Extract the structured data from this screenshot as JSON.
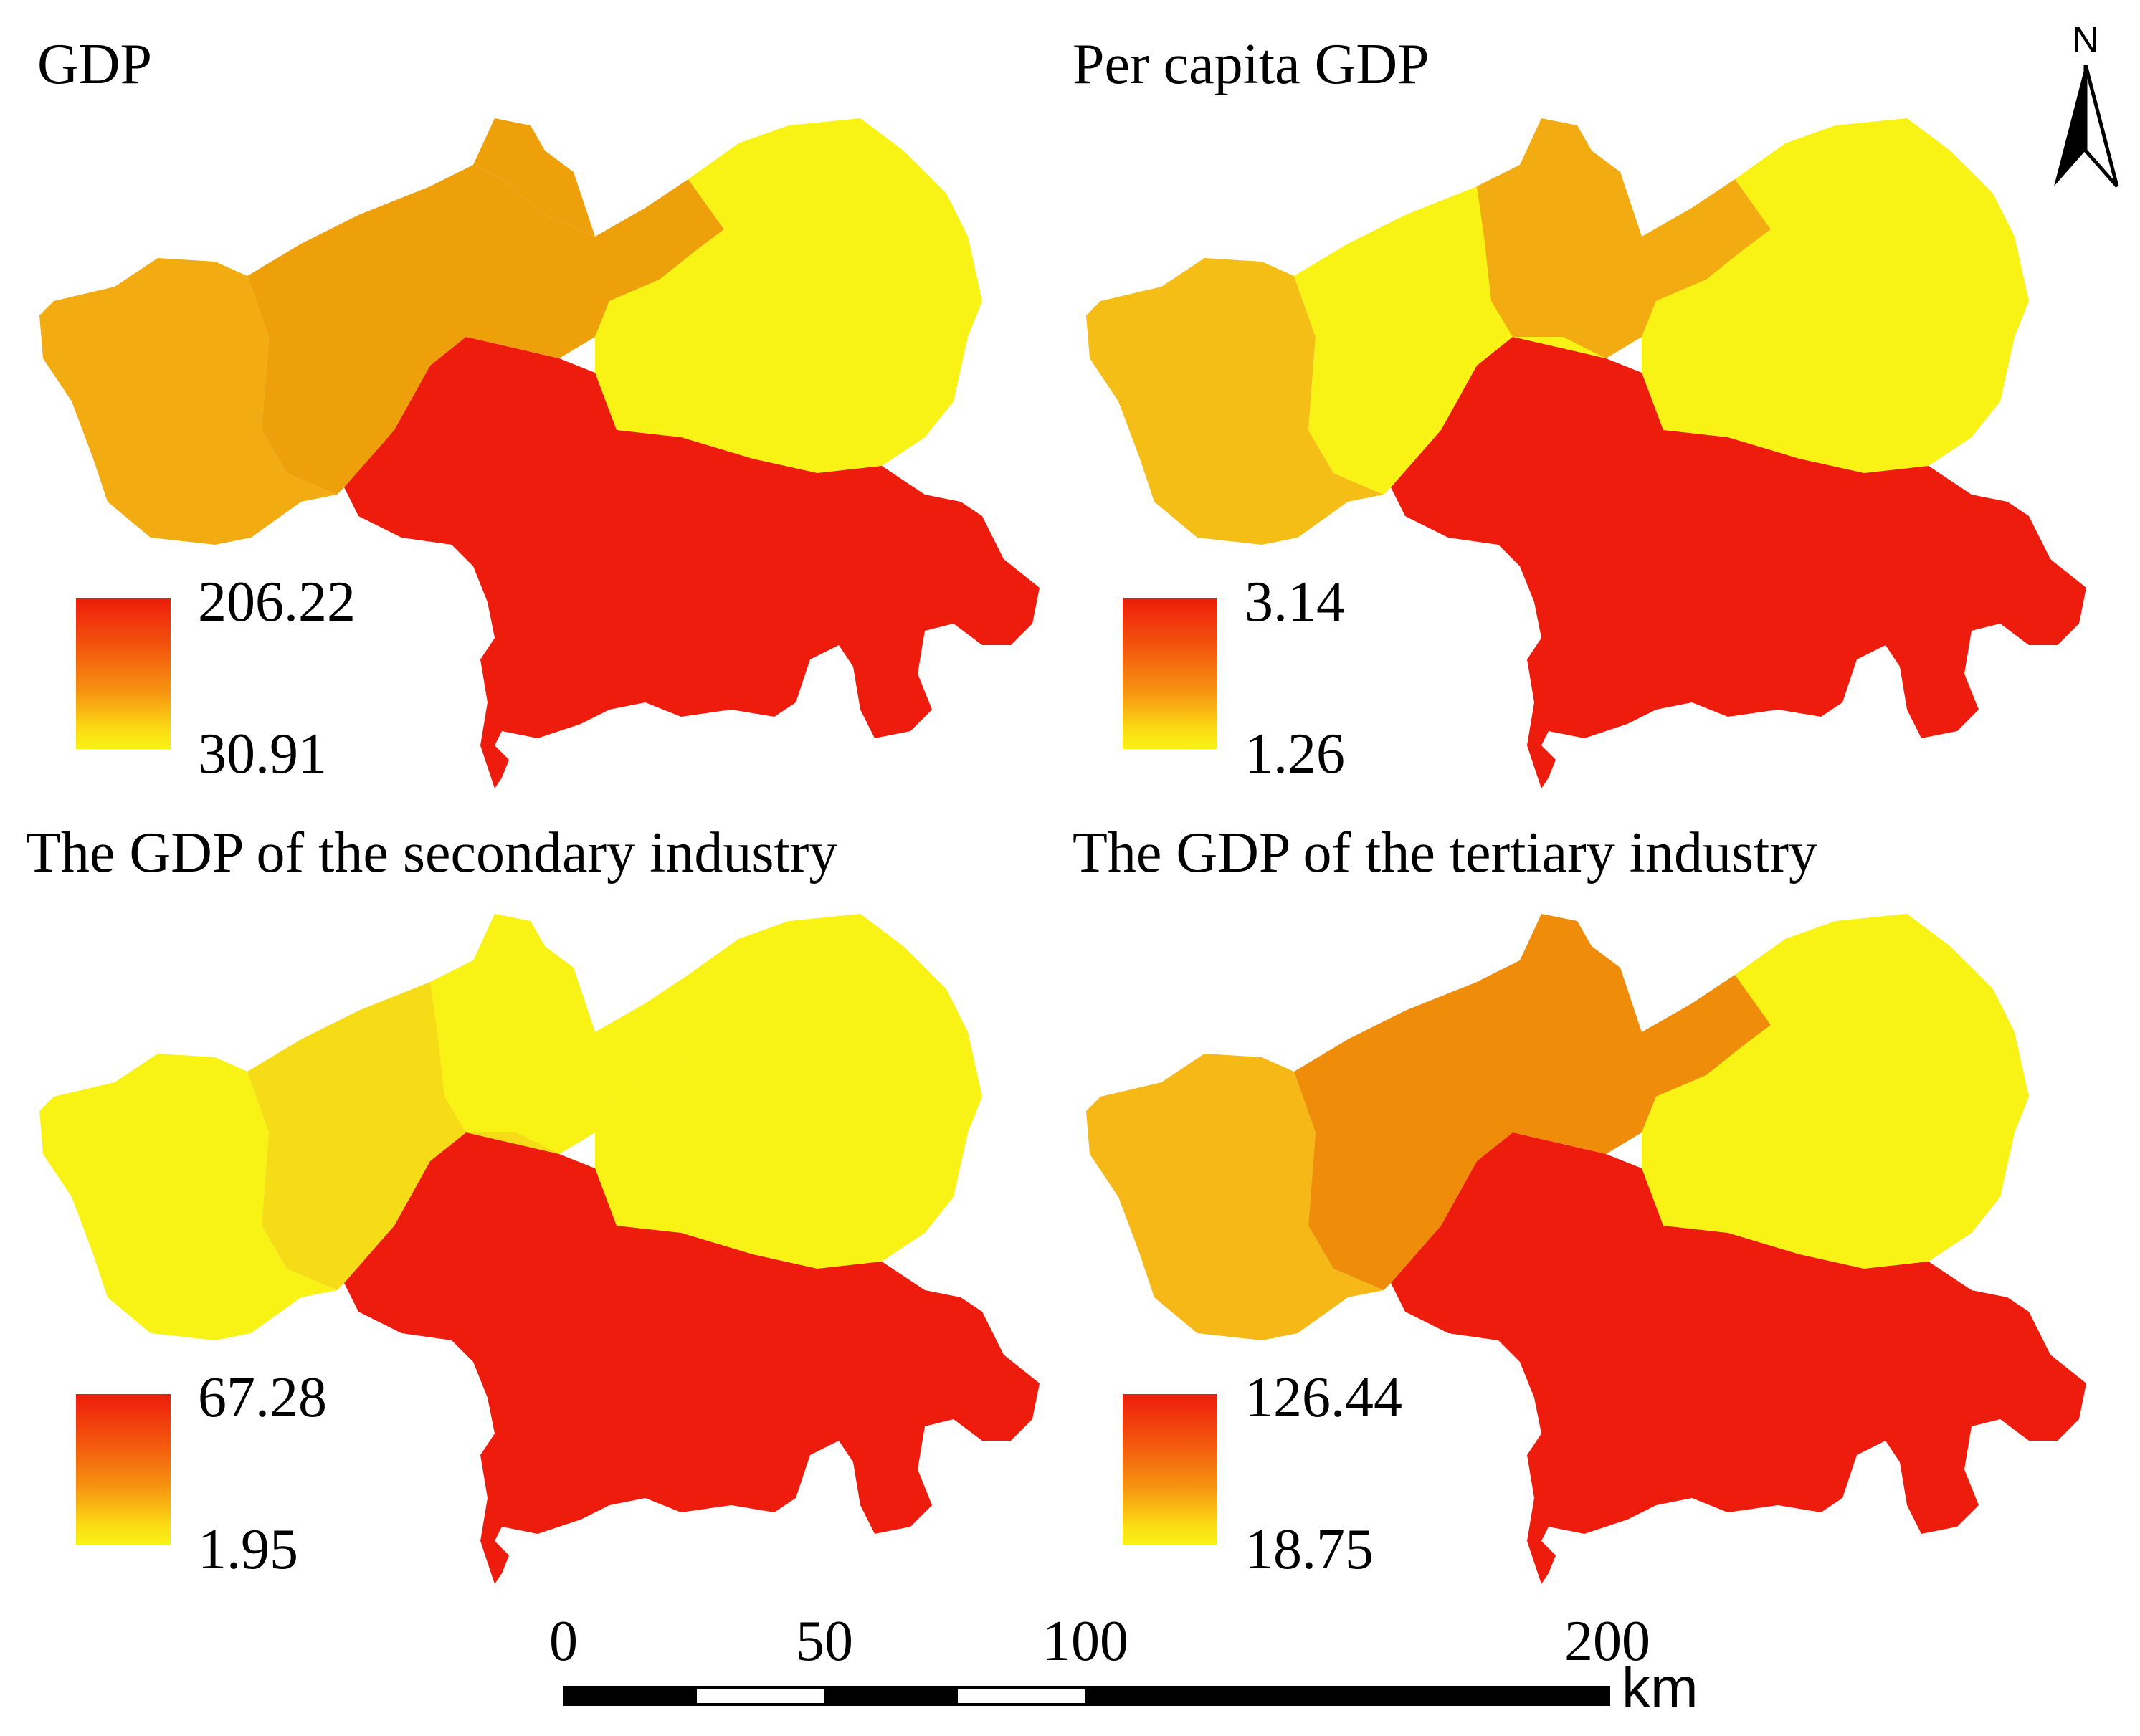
{
  "colors": {
    "low": "#f8f215",
    "mid_low": "#f5be16",
    "mid": "#f2a20e",
    "mid_high": "#ef8c0a",
    "high": "#ee1c0c"
  },
  "panels": [
    {
      "title": "GDP",
      "legend": {
        "max": "206.22",
        "min": "30.91"
      },
      "districts": {
        "west": "#f2ac12",
        "central": "#eea00b",
        "north": "#eea00b",
        "east": "#f8f215",
        "south": "#ee1c0c"
      }
    },
    {
      "title": "Per capita GDP",
      "legend": {
        "max": "3.14",
        "min": "1.26"
      },
      "districts": {
        "west": "#f5be16",
        "central": "#f8f215",
        "north": "#f2ac12",
        "east": "#f8f215",
        "south": "#ee1c0c"
      }
    },
    {
      "title": "The GDP of the secondary industry",
      "legend": {
        "max": "67.28",
        "min": "1.95"
      },
      "districts": {
        "west": "#f8f215",
        "central": "#f5dc16",
        "north": "#f8f215",
        "east": "#f8f215",
        "south": "#ee1c0c"
      }
    },
    {
      "title": "The GDP of the tertiary industry",
      "legend": {
        "max": "126.44",
        "min": "18.75"
      },
      "districts": {
        "west": "#f5b816",
        "central": "#ef8c0a",
        "north": "#ef8c0a",
        "east": "#f8f215",
        "south": "#ee1c0c"
      }
    }
  ],
  "scale_bar": {
    "ticks": [
      "0",
      "50",
      "100",
      "200"
    ],
    "tick_values": [
      0,
      50,
      100,
      200
    ],
    "unit": "km"
  },
  "north_arrow": {
    "label": "N"
  }
}
